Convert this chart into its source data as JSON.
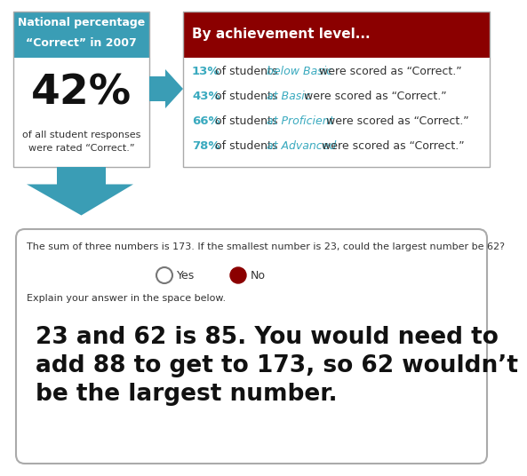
{
  "title_line1": "National percentage",
  "title_line2": "“Correct” in 2007",
  "big_percent": "42%",
  "sub_text1": "of all student responses",
  "sub_text2": "were rated “Correct.”",
  "achievement_header": "By achievement level...",
  "achievement_header_bg": "#8b0000",
  "teal": "#3a9db5",
  "cyan_text": "#3aaabf",
  "dark_text": "#222222",
  "mid_text": "#444444",
  "ach_lines": [
    {
      "pct": "13%",
      "pre": " of students ",
      "italic": "below Basic",
      "post": " were scored as “Correct.”"
    },
    {
      "pct": "43%",
      "pre": " of students ",
      "italic": "at Basic",
      "post": " were scored as “Correct.”"
    },
    {
      "pct": "66%",
      "pre": " of students ",
      "italic": "at Proficient",
      "post": " were scored as “Correct.”"
    },
    {
      "pct": "78%",
      "pre": " of students ",
      "italic": "at Advanced",
      "post": " were scored as “Correct.”"
    }
  ],
  "question_text": "The sum of three numbers is 173. If the smallest number is 23, could the largest number be 62?",
  "yes_label": "Yes",
  "no_label": "No",
  "no_circle_color": "#8b0000",
  "explain_text": "Explain your answer in the space below.",
  "hw_line1": "23 and 62 is 85. You would need to",
  "hw_line2": "add 88 to get to 173, so 62 wouldn’t",
  "hw_line3": "be the largest number.",
  "white": "#ffffff",
  "light_gray": "#dddddd"
}
